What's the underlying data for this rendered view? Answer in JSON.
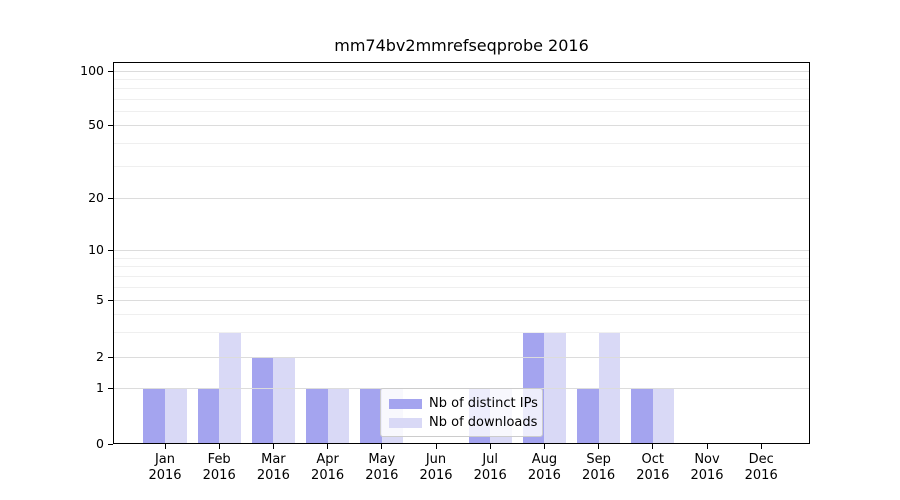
{
  "chart_data": {
    "type": "bar",
    "title": "mm74bv2mmrefseqprobe 2016",
    "xlabel": "",
    "ylabel": "",
    "year_label": "2016",
    "categories": [
      "Jan",
      "Feb",
      "Mar",
      "Apr",
      "May",
      "Jun",
      "Jul",
      "Aug",
      "Sep",
      "Oct",
      "Nov",
      "Dec"
    ],
    "series": [
      {
        "name": "Nb of distinct IPs",
        "color": "#a4a4ef",
        "values": [
          1,
          1,
          2,
          1,
          1,
          0,
          1,
          3,
          1,
          1,
          0,
          0
        ]
      },
      {
        "name": "Nb of downloads",
        "color": "#d9d9f6",
        "values": [
          1,
          3,
          2,
          1,
          1,
          0,
          1,
          3,
          3,
          1,
          0,
          0
        ]
      }
    ],
    "yticks": [
      0,
      1,
      2,
      5,
      10,
      20,
      50,
      100
    ],
    "ytick_labels": [
      "0",
      "1",
      "2",
      "5",
      "10",
      "20",
      "50",
      "100"
    ],
    "yscale": "log-like (1-2-5 steps, linear 0-1)",
    "ylim": [
      0,
      112
    ],
    "grid": true,
    "grid_over_bars": true,
    "legend_position": "inside-bottom-center",
    "colors": {
      "spine": "#000000",
      "major_grid": "#dcdcdc",
      "minor_grid": "#efefef",
      "legend_border": "#cccccc",
      "text": "#000000"
    }
  }
}
